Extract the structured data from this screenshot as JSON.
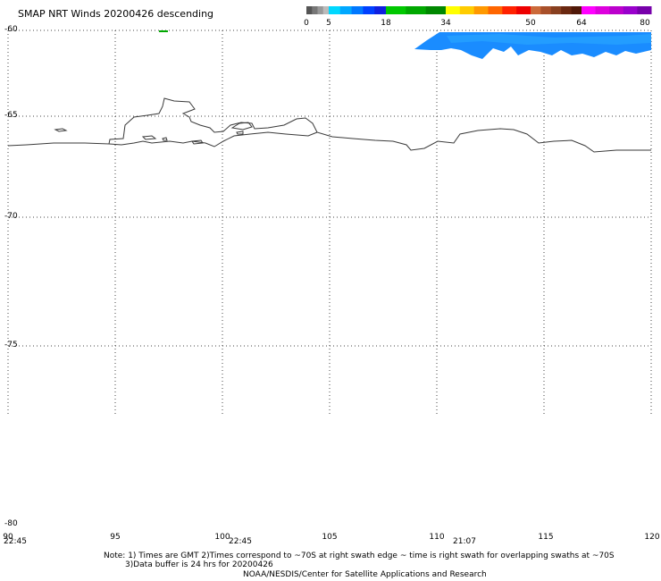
{
  "title": "SMAP NRT Winds  20200426 descending",
  "colorbar": {
    "segments": [
      {
        "from": 0,
        "to": 5,
        "colors": [
          "#555555",
          "#777777",
          "#999999",
          "#bbbbbb"
        ]
      },
      {
        "from": 5,
        "to": 18,
        "colors": [
          "#00d8ff",
          "#00a8ff",
          "#0078ff",
          "#0040ff",
          "#1020e0"
        ]
      },
      {
        "from": 18,
        "to": 34,
        "colors": [
          "#00c800",
          "#00a800",
          "#008800"
        ]
      },
      {
        "from": 34,
        "to": 50,
        "colors": [
          "#ffff00",
          "#ffcc00",
          "#ff9900",
          "#ff6600",
          "#ff2200",
          "#ee0000"
        ]
      },
      {
        "from": 50,
        "to": 64,
        "colors": [
          "#cc6a3a",
          "#a8502a",
          "#884020",
          "#6a2810",
          "#501808"
        ]
      },
      {
        "from": 64,
        "to": 80,
        "colors": [
          "#ff00ff",
          "#dd00dd",
          "#bb00cc",
          "#9900cc",
          "#7700aa"
        ]
      }
    ],
    "tick_labels": [
      "0",
      "5",
      "18",
      "34",
      "50",
      "64",
      "80"
    ]
  },
  "map": {
    "lon_range": [
      90,
      120
    ],
    "lat_range": [
      -80,
      -60
    ],
    "lon_ticks": [
      "90",
      "95",
      "100",
      "105",
      "110",
      "115",
      "120"
    ],
    "lat_ticks": [
      "-60",
      "-65",
      "-70",
      "-75",
      "-80"
    ],
    "coastline_color": "#3a3a3a",
    "swath_color": "#1a8cff"
  },
  "swath_times": [
    "22:45",
    "22:45",
    "21:07"
  ],
  "notes": [
    "Note: 1) Times are GMT 2)Times correspond to ~70S at right swath edge ~ time is right swath for overlapping swaths at ~70S",
    "3)Data buffer is 24 hrs for 20200426",
    "NOAA/NESDIS/Center for Satellite Applications and Research"
  ]
}
